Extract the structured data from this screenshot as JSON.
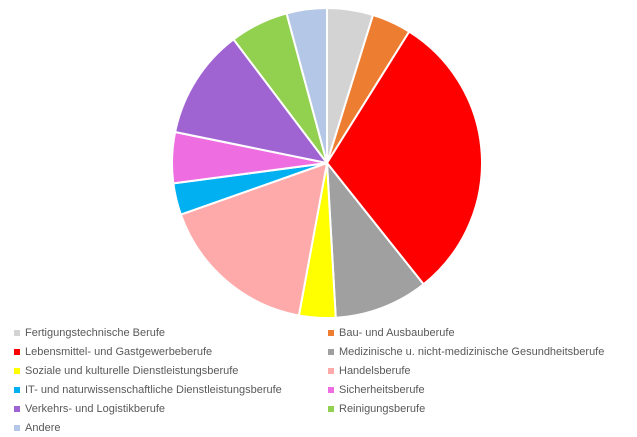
{
  "chart_data": {
    "type": "pie",
    "title": "",
    "legend_position": "bottom",
    "slices": [
      {
        "name": "Fertigungstechnische Berufe",
        "value": 4.8,
        "color": "#d3d3d3"
      },
      {
        "name": "Bau- und Ausbauberufe",
        "value": 4.1,
        "color": "#ed7d31"
      },
      {
        "name": "Lebensmittel- und Gastgewerbeberufe",
        "value": 30.4,
        "color": "#ff0000"
      },
      {
        "name": " Medizinische u. nicht-medizinische Gesundheitsberufe",
        "value": 9.8,
        "color": "#a0a0a0"
      },
      {
        "name": "Soziale und kulturelle Dienstleistungsberufe",
        "value": 3.8,
        "color": "#ffff00"
      },
      {
        "name": "Handelsberufe",
        "value": 16.7,
        "color": "#ffaaaa"
      },
      {
        "name": " IT- und naturwissenschaftliche Dienstleistungsberufe",
        "value": 3.3,
        "color": "#00b0f0"
      },
      {
        "name": "Sicherheitsberufe",
        "value": 5.3,
        "color": "#ee6ee2"
      },
      {
        "name": "Verkehrs- und Logistikberufe",
        "value": 11.5,
        "color": "#a064d2"
      },
      {
        "name": "Reinigungsberufe",
        "value": 6.1,
        "color": "#92d050"
      },
      {
        "name": "Andere",
        "value": 4.2,
        "color": "#b4c7e7"
      }
    ]
  }
}
